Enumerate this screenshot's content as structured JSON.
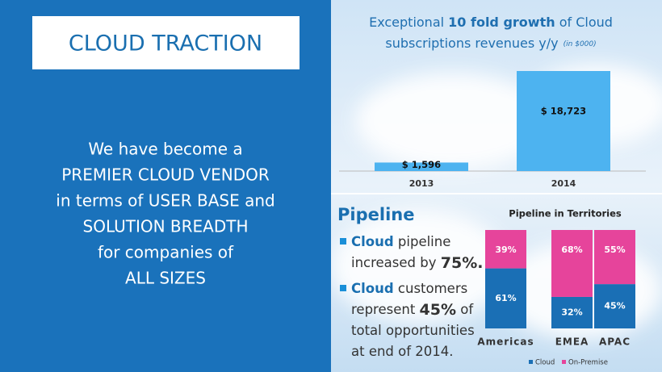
{
  "left": {
    "title": "CLOUD TRACTION",
    "lines": [
      "We have become a",
      "PREMIER CLOUD VENDOR",
      "in terms of USER BASE and",
      "SOLUTION BREADTH",
      "for companies of",
      "ALL SIZES"
    ]
  },
  "pipeline": {
    "heading": "Pipeline",
    "bullets": [
      [
        {
          "text": "Cloud",
          "bold": true
        },
        {
          "text": " pipeline"
        },
        {
          "text": "increased by ",
          "newline": true
        },
        {
          "text": "75%.",
          "bold": true
        }
      ],
      [
        {
          "text": "Cloud",
          "bold": true
        },
        {
          "text": " customers"
        },
        {
          "text": "represent ",
          "newline": true
        },
        {
          "text": "45%",
          "bold": true
        },
        {
          "text": " of"
        },
        {
          "text": "total opportunities",
          "newline": true
        },
        {
          "text": "at end of 2014.",
          "newline": true
        }
      ]
    ]
  },
  "chart_data": [
    {
      "type": "bar",
      "title": [
        "Exceptional ",
        "10 fold growth",
        " of Cloud"
      ],
      "title_line2": "subscriptions revenues y/y",
      "subtitle": "(in $000)",
      "categories": [
        "2013",
        "2014"
      ],
      "values": [
        1596,
        18723
      ],
      "value_labels": [
        "$ 1,596",
        "$ 18,723"
      ],
      "color": "#4db3f0"
    },
    {
      "type": "stacked-bar",
      "title": "Pipeline in Territories",
      "categories": [
        "Americas",
        "EMEA",
        "APAC"
      ],
      "series": [
        {
          "name": "Cloud",
          "color": "#1a6fb5",
          "values": [
            61,
            32,
            45
          ],
          "value_labels": [
            "61%",
            "32%",
            "45%"
          ]
        },
        {
          "name": "On-Premise",
          "color": "#e6449b",
          "values": [
            39,
            68,
            55
          ],
          "value_labels": [
            "39%",
            "68%",
            "55%"
          ]
        }
      ],
      "ylim": [
        0,
        100
      ],
      "legend": "bottom"
    }
  ]
}
